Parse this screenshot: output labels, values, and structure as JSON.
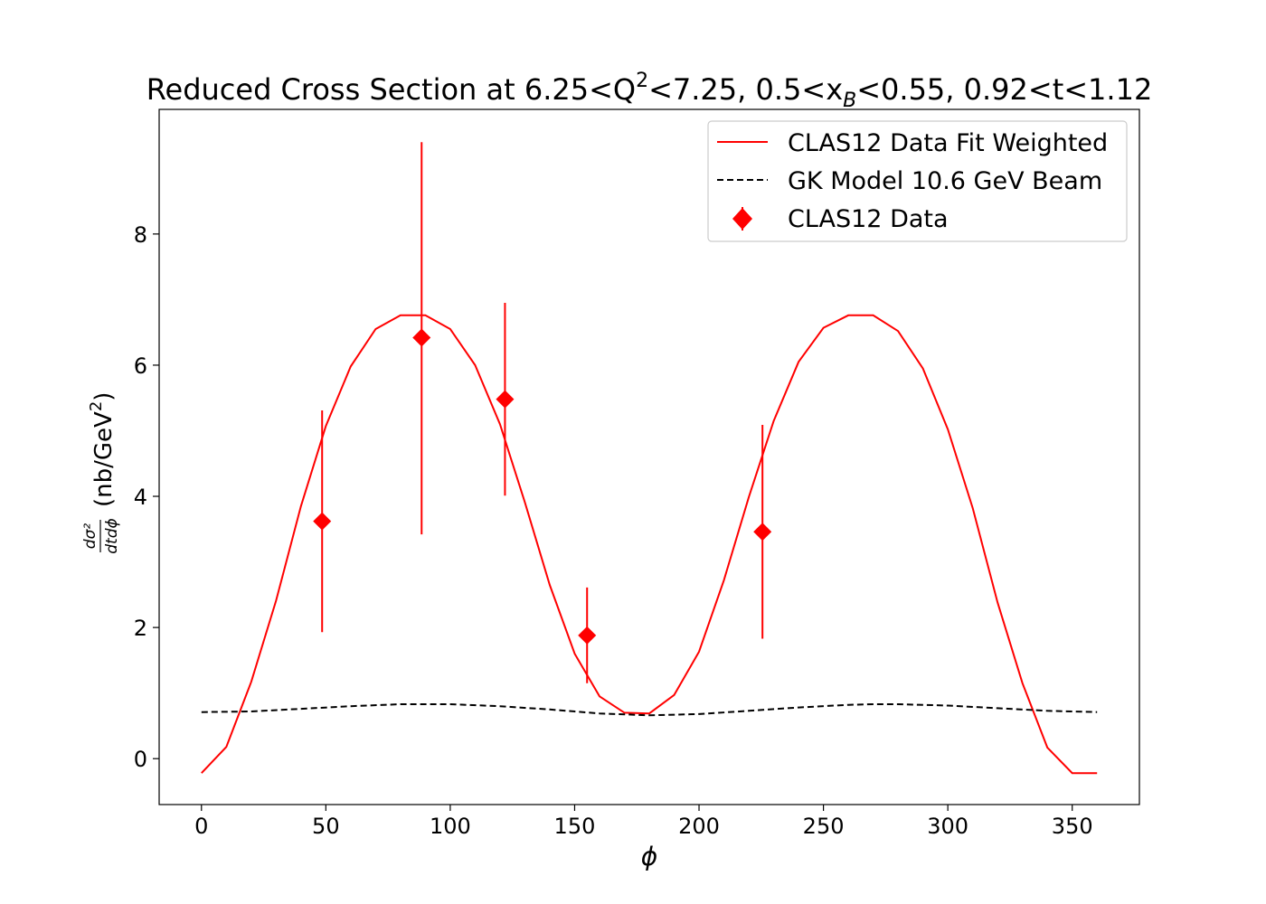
{
  "chart_data": {
    "type": "line",
    "title": {
      "prefix": "Reduced Cross Section at 6.25<Q",
      "sup": "2",
      "mid1": "<7.25, 0.5<x",
      "sub": "B",
      "mid2": "<0.55, 0.92<t<1.12"
    },
    "xlabel": "ϕ",
    "ylabel": {
      "fraction_num": "dσ²",
      "fraction_den": "dtdϕ",
      "unit_prefix": "(nb/GeV",
      "unit_sup": "2",
      "unit_suffix": ")"
    },
    "xlim": [
      -17,
      377
    ],
    "ylim": [
      -0.7,
      9.9
    ],
    "xticks": [
      0,
      50,
      100,
      150,
      200,
      250,
      300,
      350
    ],
    "yticks": [
      0,
      2,
      4,
      6,
      8
    ],
    "grid": false,
    "legend": {
      "placement": "top-right",
      "entries": [
        "CLAS12 Data Fit Weighted",
        "GK Model 10.6 GeV Beam",
        "CLAS12 Data"
      ]
    },
    "series": [
      {
        "name": "CLAS12 Data Fit Weighted",
        "kind": "line",
        "color": "#ff0000",
        "style": "solid",
        "x": [
          0,
          10,
          20,
          30,
          40,
          50,
          60,
          70,
          80,
          90,
          100,
          110,
          120,
          130,
          140,
          150,
          160,
          170,
          180,
          190,
          200,
          210,
          220,
          230,
          240,
          250,
          260,
          270,
          280,
          290,
          300,
          310,
          320,
          330,
          340,
          350,
          360
        ],
        "y": [
          -0.22,
          0.18,
          1.17,
          2.41,
          3.85,
          5.07,
          5.98,
          6.55,
          6.76,
          6.76,
          6.55,
          6.0,
          5.1,
          3.91,
          2.65,
          1.6,
          0.95,
          0.7,
          0.69,
          0.97,
          1.63,
          2.72,
          3.99,
          5.15,
          6.05,
          6.57,
          6.76,
          6.76,
          6.52,
          5.95,
          5.02,
          3.82,
          2.38,
          1.15,
          0.17,
          -0.22,
          -0.22
        ]
      },
      {
        "name": "GK Model 10.6 GeV Beam",
        "kind": "line",
        "color": "#000000",
        "style": "dashed",
        "x": [
          0,
          20,
          40,
          60,
          80,
          90,
          100,
          120,
          140,
          160,
          180,
          200,
          220,
          240,
          260,
          270,
          280,
          300,
          320,
          340,
          360
        ],
        "y": [
          0.71,
          0.72,
          0.76,
          0.8,
          0.83,
          0.83,
          0.83,
          0.8,
          0.75,
          0.69,
          0.66,
          0.68,
          0.73,
          0.78,
          0.82,
          0.83,
          0.83,
          0.81,
          0.77,
          0.73,
          0.71
        ]
      },
      {
        "name": "CLAS12 Data",
        "kind": "errorbar",
        "color": "#ff0000",
        "marker": "diamond",
        "x": [
          48.5,
          88.5,
          122,
          155,
          225.5
        ],
        "y": [
          3.62,
          6.42,
          5.48,
          1.88,
          3.46
        ],
        "yerr_low": [
          1.69,
          3.0,
          1.47,
          0.73,
          1.63
        ],
        "yerr_high": [
          1.69,
          2.98,
          1.47,
          0.73,
          1.63
        ]
      }
    ]
  }
}
